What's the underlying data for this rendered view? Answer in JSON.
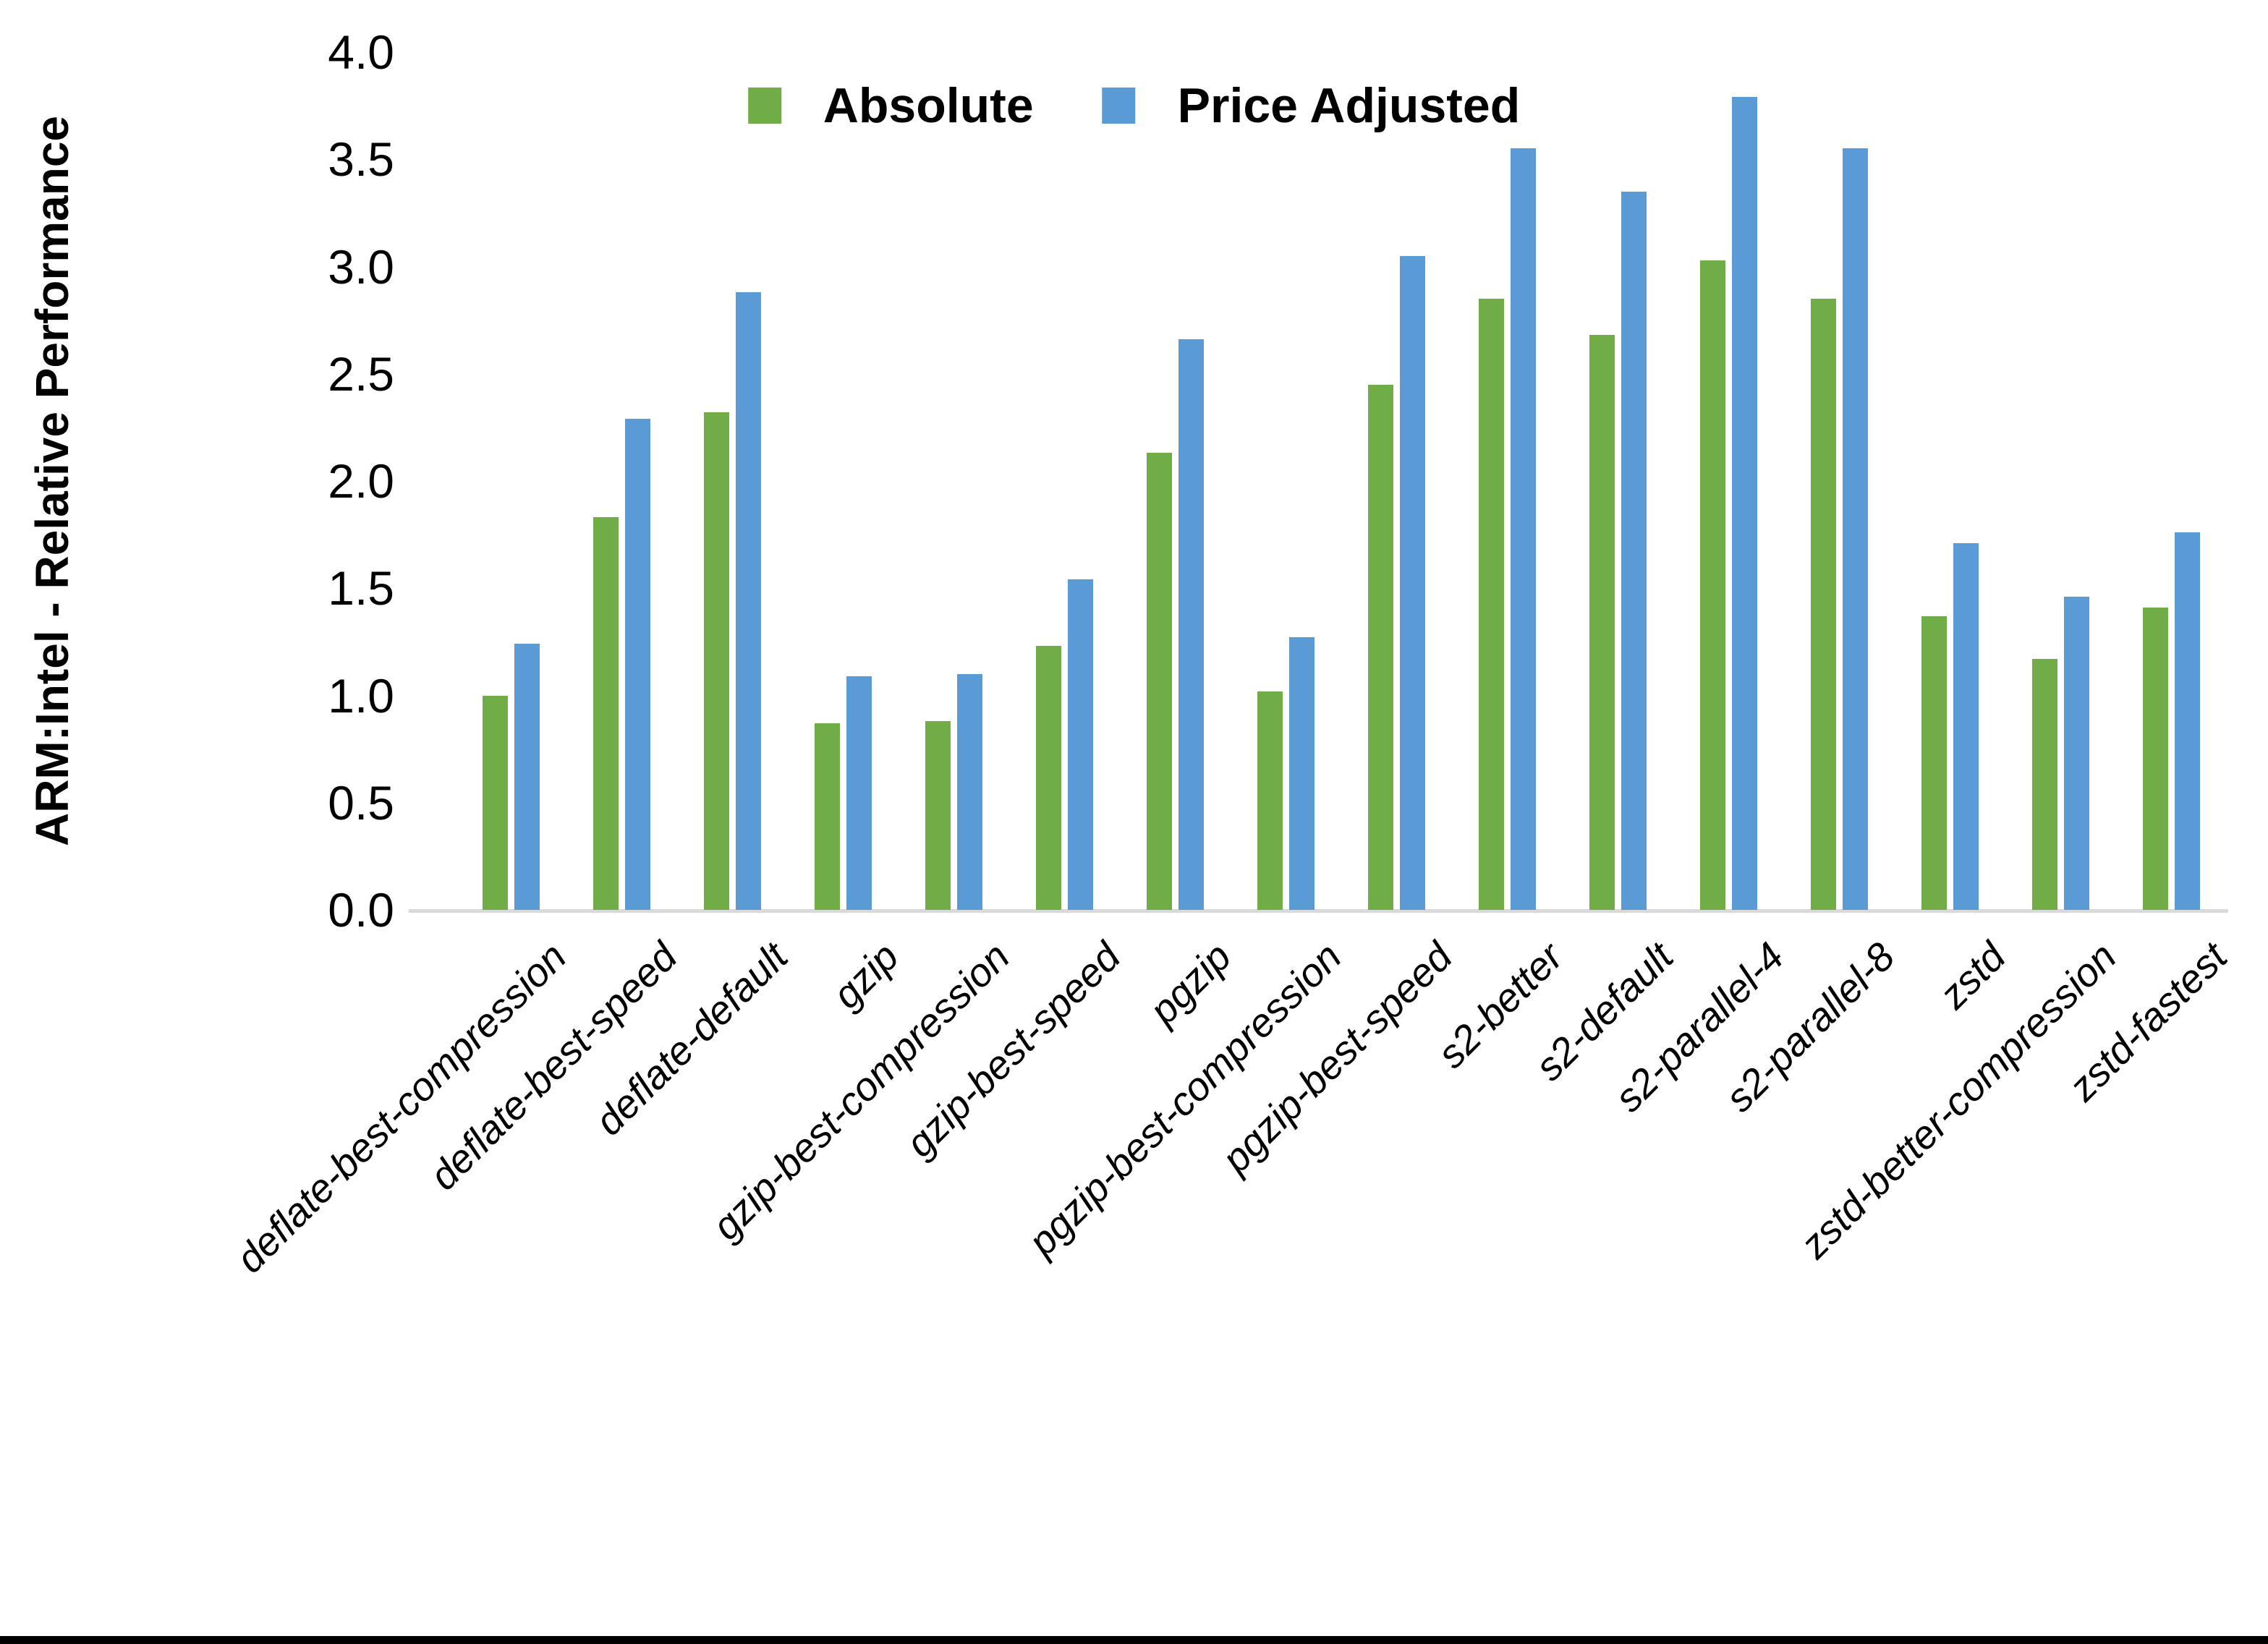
{
  "chart_data": {
    "type": "bar",
    "title": "",
    "ylabel": "ARM:Intel - Relative Performance",
    "xlabel": "",
    "ylim": [
      0.0,
      4.0
    ],
    "ytick_step": 0.5,
    "ytick_labels": [
      "0.0",
      "0.5",
      "1.0",
      "1.5",
      "2.0",
      "2.5",
      "3.0",
      "3.5",
      "4.0"
    ],
    "grid": "off",
    "legend_position": "top-center",
    "categories": [
      "deflate-best-compression",
      "deflate-best-speed",
      "deflate-default",
      "gzip",
      "gzip-best-compression",
      "gzip-best-speed",
      "pgzip",
      "pgzip-best-compression",
      "pgzip-best-speed",
      "s2-better",
      "s2-default",
      "s2-parallel-4",
      "s2-parallel-8",
      "zstd",
      "zstd-better-compression",
      "zstd-fastest"
    ],
    "series": [
      {
        "name": "Absolute",
        "color": "#70AD47",
        "values": [
          1.0,
          1.83,
          2.32,
          0.87,
          0.88,
          1.23,
          2.13,
          1.02,
          2.45,
          2.85,
          2.68,
          3.03,
          2.85,
          1.37,
          1.17,
          1.41
        ]
      },
      {
        "name": "Price Adjusted",
        "color": "#5B9BD5",
        "values": [
          1.24,
          2.29,
          2.88,
          1.09,
          1.1,
          1.54,
          2.66,
          1.27,
          3.05,
          3.55,
          3.35,
          3.79,
          3.55,
          1.71,
          1.46,
          1.76
        ]
      }
    ],
    "axis_line_color": "#D9D9D9",
    "text_color": "#000000"
  }
}
